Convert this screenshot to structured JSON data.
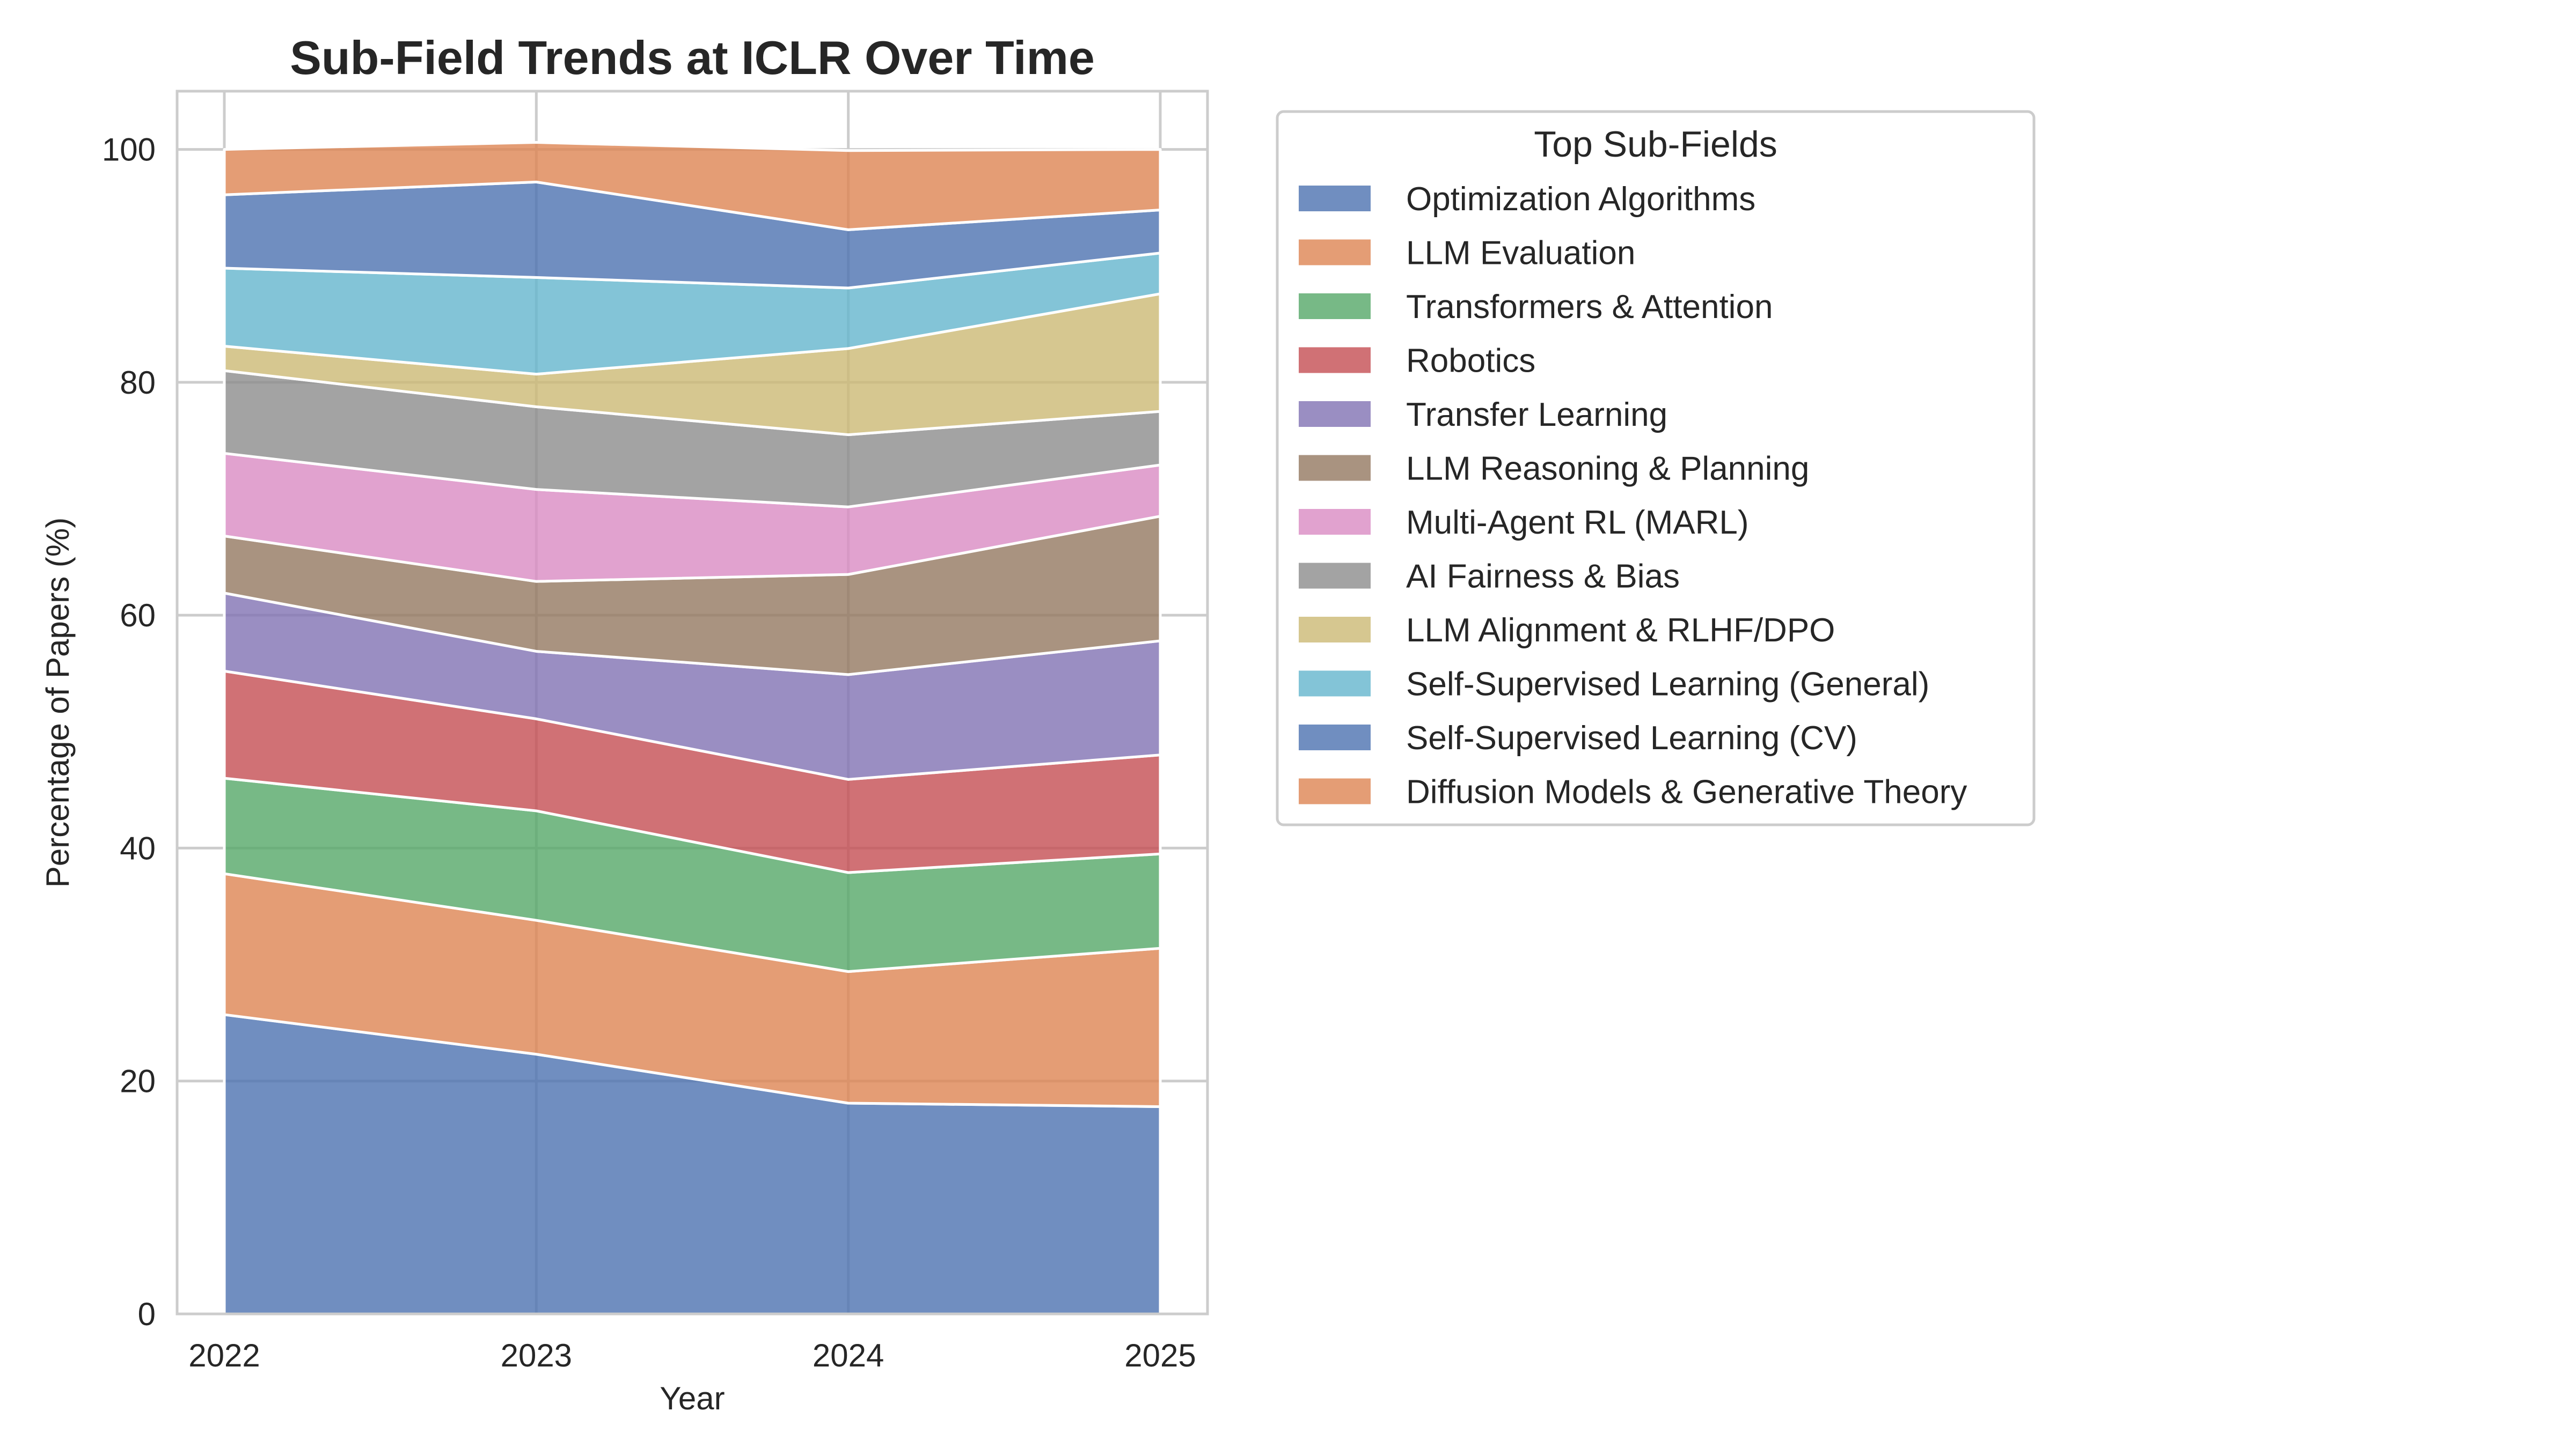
{
  "chart_data": {
    "type": "area",
    "title": "Sub-Field Trends at ICLR Over Time",
    "xlabel": "Year",
    "ylabel": "Percentage of Papers (%)",
    "x": [
      "2022",
      "2023",
      "2024",
      "2025"
    ],
    "ylim": [
      0,
      105
    ],
    "yticks": [
      0,
      20,
      40,
      60,
      80,
      100
    ],
    "stacked": true,
    "grid": true,
    "legend": {
      "title": "Top Sub-Fields",
      "placement": "outside right"
    },
    "series": [
      {
        "name": "Optimization Algorithms",
        "color": "#4c72b0",
        "values": [
          25.7,
          22.3,
          18.1,
          17.8
        ]
      },
      {
        "name": "LLM Evaluation",
        "color": "#dd8452",
        "values": [
          12.1,
          11.5,
          11.3,
          13.6
        ]
      },
      {
        "name": "Transformers & Attention",
        "color": "#55a868",
        "values": [
          8.2,
          9.4,
          8.5,
          8.1
        ]
      },
      {
        "name": "Robotics",
        "color": "#c44e52",
        "values": [
          9.2,
          7.9,
          8.0,
          8.5
        ]
      },
      {
        "name": "Transfer Learning",
        "color": "#8172b3",
        "values": [
          6.7,
          5.8,
          9.0,
          9.8
        ]
      },
      {
        "name": "LLM Reasoning & Planning",
        "color": "#937860",
        "values": [
          4.9,
          6.0,
          8.6,
          10.7
        ]
      },
      {
        "name": "Multi-Agent RL (MARL)",
        "color": "#da8bc3",
        "values": [
          7.1,
          7.9,
          5.8,
          4.4
        ]
      },
      {
        "name": "AI Fairness & Bias",
        "color": "#8c8c8c",
        "values": [
          7.1,
          7.1,
          6.2,
          4.6
        ]
      },
      {
        "name": "LLM Alignment & RLHF/DPO",
        "color": "#ccb974",
        "values": [
          2.1,
          2.8,
          7.4,
          10.1
        ]
      },
      {
        "name": "Self-Supervised Learning (General)",
        "color": "#64b5cd",
        "values": [
          6.7,
          8.3,
          5.2,
          3.5
        ]
      },
      {
        "name": "Self-Supervised Learning (CV)",
        "color": "#4c72b0",
        "values": [
          6.3,
          8.2,
          5.0,
          3.7
        ]
      },
      {
        "name": "Diffusion Models & Generative Theory",
        "color": "#dd8452",
        "values": [
          3.9,
          3.4,
          6.8,
          5.2
        ]
      }
    ]
  }
}
